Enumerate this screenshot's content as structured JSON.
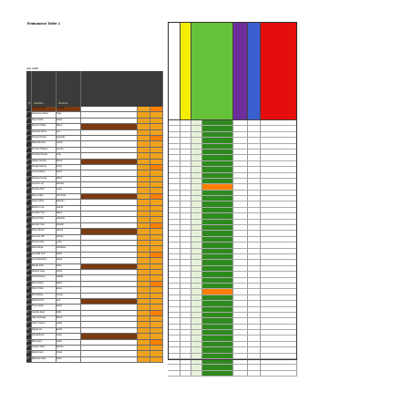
{
  "title": "Evaluacion Taller 1",
  "year_label": "Año 2015",
  "left_headers": [
    "N°",
    "Apellidos",
    "Nombres"
  ],
  "green_header_note": "",
  "colors": {
    "dark_header": "#3b3b3b",
    "yellow": "#f3ee00",
    "green": "#66c23a",
    "dark_green": "#2f8a1e",
    "purple": "#6d2e9c",
    "blue": "#3a5fcf",
    "red": "#e60d0d",
    "orange": "#f0a21c",
    "brown": "#7a3a12",
    "cell_orange": "#ff7f00"
  },
  "students": [
    {
      "n": "1",
      "apellidos": "Andrade Hugo",
      "nombres": "Santiago"
    },
    {
      "n": "2",
      "apellidos": "Quinteros Andrés",
      "nombres": "Hugo"
    },
    {
      "n": "3",
      "apellidos": "Tacuri Sofia",
      "nombres": "Paola"
    },
    {
      "n": "4",
      "apellidos": "Roman Chulde",
      "nombres": "Marco"
    },
    {
      "n": "5",
      "apellidos": "Quintana Pinza",
      "nombres": "Luis"
    },
    {
      "n": "6",
      "apellidos": "Tamayo Darwin",
      "nombres": "Alejandro"
    },
    {
      "n": "7",
      "apellidos": "Maria Ramirez",
      "nombres": "Carlos"
    },
    {
      "n": "8",
      "apellidos": "Jimenez Paulina",
      "nombres": "Andrea"
    },
    {
      "n": "9",
      "apellidos": "Chicaiza Nicolas",
      "nombres": "Juan"
    },
    {
      "n": "10",
      "apellidos": "Vargas Cedeño",
      "nombres": "Diana"
    },
    {
      "n": "11",
      "apellidos": "Ortega Cabrera",
      "nombres": "Kevin"
    },
    {
      "n": "12",
      "apellidos": "Lema Velasco",
      "nombres": "Pedro"
    },
    {
      "n": "13",
      "apellidos": "Sarango Teresa",
      "nombres": "Maria"
    },
    {
      "n": "14",
      "apellidos": "Cuenca Loor",
      "nombres": "Daniela"
    },
    {
      "n": "15",
      "apellidos": "Paredes Ruiz",
      "nombres": "Jorge"
    },
    {
      "n": "16",
      "apellidos": "Reyes Calle",
      "nombres": "Fernanda"
    },
    {
      "n": "17",
      "apellidos": "Aguirre Mora",
      "nombres": "Esteban"
    },
    {
      "n": "18",
      "apellidos": "Benitez Luna",
      "nombres": "Camila"
    },
    {
      "n": "19",
      "apellidos": "Cevallos Toro",
      "nombres": "Mateo"
    },
    {
      "n": "20",
      "apellidos": "Duarte Pinto",
      "nombres": "Gabriela"
    },
    {
      "n": "21",
      "apellidos": "Escobar Vera",
      "nombres": "Ricardo"
    },
    {
      "n": "22",
      "apellidos": "Flores Nuñez",
      "nombres": "Valeria"
    },
    {
      "n": "23",
      "apellidos": "Guerrero Paz",
      "nombres": "Andrés"
    },
    {
      "n": "24",
      "apellidos": "Herrera Solis",
      "nombres": "Lucia"
    },
    {
      "n": "25",
      "apellidos": "Ibarra Mejia",
      "nombres": "Sebastian"
    },
    {
      "n": "26",
      "apellidos": "Jaramillo Cruz",
      "nombres": "Paula"
    },
    {
      "n": "27",
      "apellidos": "Leon Zambrano",
      "nombres": "Diego"
    },
    {
      "n": "28",
      "apellidos": "Macias Ortiz",
      "nombres": "Karla"
    },
    {
      "n": "29",
      "apellidos": "Naranjo Vega",
      "nombres": "Felipe"
    },
    {
      "n": "30",
      "apellidos": "Ochoa Ramos",
      "nombres": "Natalia"
    },
    {
      "n": "31",
      "apellidos": "Peña Castro",
      "nombres": "Martin"
    },
    {
      "n": "32",
      "apellidos": "Quiroz Silva",
      "nombres": "Elena"
    },
    {
      "n": "33",
      "apellidos": "Rios Molina",
      "nombres": "Tomas"
    },
    {
      "n": "34",
      "apellidos": "Salazar Pino",
      "nombres": "Ana"
    },
    {
      "n": "35",
      "apellidos": "Torres Ayala",
      "nombres": "David"
    },
    {
      "n": "36",
      "apellidos": "Uquillas Real",
      "nombres": "Sofia"
    },
    {
      "n": "37",
      "apellidos": "Valencia Rojas",
      "nombres": "Bruno"
    },
    {
      "n": "38",
      "apellidos": "Yanez Carrion",
      "nombres": "Isabel"
    },
    {
      "n": "39",
      "apellidos": "Zapata Gil",
      "nombres": "Emilio"
    },
    {
      "n": "40",
      "apellidos": "Acosta Bravo",
      "nombres": "Carla"
    },
    {
      "n": "41",
      "apellidos": "Borja Lara",
      "nombres": "Javier"
    },
    {
      "n": "42",
      "apellidos": "Cordero Haro",
      "nombres": "Monica"
    },
    {
      "n": "43",
      "apellidos": "Davila Cano",
      "nombres": "Oscar"
    },
    {
      "n": "44",
      "apellidos": "Espinoza Vaca",
      "nombres": "Rosa"
    }
  ]
}
